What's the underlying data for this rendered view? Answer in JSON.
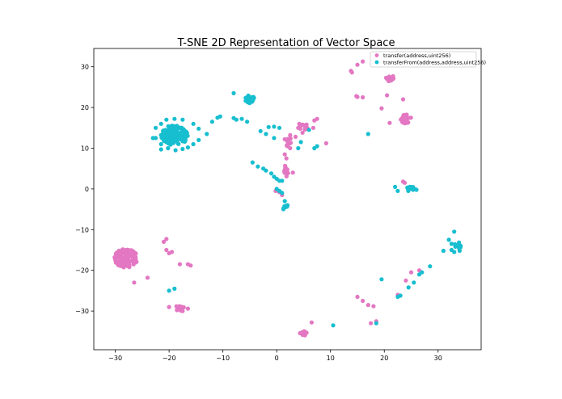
{
  "chart_data": {
    "type": "scatter",
    "title": "T-SNE 2D Representation of Vector Space",
    "xlabel": "",
    "ylabel": "",
    "xlim": [
      -34,
      38
    ],
    "ylim": [
      -39.5,
      34.5
    ],
    "xticks": [
      -30,
      -20,
      -10,
      0,
      10,
      20,
      30
    ],
    "yticks": [
      -30,
      -20,
      -10,
      0,
      10,
      20,
      30
    ],
    "xtick_labels": [
      "−30",
      "−20",
      "−10",
      "0",
      "10",
      "20",
      "30"
    ],
    "ytick_labels": [
      "−30",
      "−20",
      "−10",
      "0",
      "10",
      "20",
      "30"
    ],
    "grid": false,
    "legend_position": "top-right",
    "series": [
      {
        "name": "transfer(address,uint256)",
        "color": "#e377c2",
        "clusters": [
          {
            "cx": -28,
            "cy": -17,
            "rx": 2.2,
            "ry": 2.3,
            "n": 120
          },
          {
            "cx": 24,
            "cy": 17.2,
            "rx": 1.0,
            "ry": 1.1,
            "n": 30
          },
          {
            "cx": 21,
            "cy": 27.2,
            "rx": 0.8,
            "ry": 0.8,
            "n": 18
          },
          {
            "cx": -18,
            "cy": -29.2,
            "rx": 0.8,
            "ry": 0.8,
            "n": 18
          },
          {
            "cx": 5,
            "cy": -35.5,
            "rx": 0.7,
            "ry": 0.6,
            "n": 12
          },
          {
            "cx": 1.8,
            "cy": 4.5,
            "rx": 0.4,
            "ry": 1.5,
            "n": 14
          },
          {
            "cx": 5,
            "cy": 15.2,
            "rx": 0.9,
            "ry": 0.9,
            "n": 12
          },
          {
            "cx": 2,
            "cy": 11.5,
            "rx": 1.0,
            "ry": 1.2,
            "n": 10
          }
        ],
        "points": [
          [
            13.8,
            29
          ],
          [
            14,
            28.6
          ],
          [
            15,
            30.5
          ],
          [
            16,
            31.3
          ],
          [
            14.8,
            22.8
          ],
          [
            15,
            22.6
          ],
          [
            16,
            22.5
          ],
          [
            19.5,
            19.8
          ],
          [
            21,
            16.2
          ],
          [
            23.5,
            22
          ],
          [
            20.5,
            23
          ],
          [
            7.5,
            17.2
          ],
          [
            7,
            16.8
          ],
          [
            6.8,
            15
          ],
          [
            9.2,
            11.2
          ],
          [
            4.2,
            16
          ],
          [
            4,
            15
          ],
          [
            4.8,
            13.8
          ],
          [
            3.5,
            12.8
          ],
          [
            2.5,
            13.2
          ],
          [
            1.5,
            12.2
          ],
          [
            1.5,
            8.5
          ],
          [
            2.5,
            10
          ],
          [
            -0.2,
            -0.5
          ],
          [
            0.5,
            -0.8
          ],
          [
            1,
            -1.5
          ],
          [
            2,
            -4
          ],
          [
            1.5,
            -4.5
          ],
          [
            3,
            4
          ],
          [
            1.8,
            7.5
          ],
          [
            -21,
            -13
          ],
          [
            -20.5,
            -12.3
          ],
          [
            -20.5,
            -15
          ],
          [
            -20,
            -15.8
          ],
          [
            -19.5,
            -15.5
          ],
          [
            -18,
            -18.5
          ],
          [
            -16.5,
            -18.5
          ],
          [
            -16,
            -18.8
          ],
          [
            -24,
            -21.8
          ],
          [
            -26.5,
            -23
          ],
          [
            -20,
            -29
          ],
          [
            -16.5,
            -29.4
          ],
          [
            -17.5,
            -30
          ],
          [
            15,
            -26.5
          ],
          [
            16,
            -27.5
          ],
          [
            17,
            -28.5
          ],
          [
            18,
            -28.8
          ],
          [
            18.5,
            -32.5
          ],
          [
            17.5,
            -33
          ],
          [
            6.5,
            -32.8
          ],
          [
            23.5,
            1.8
          ],
          [
            23.8,
            1.5
          ],
          [
            25,
            -20.5
          ],
          [
            24,
            -22.5
          ],
          [
            26.5,
            -20
          ],
          [
            22.5,
            -26
          ]
        ]
      },
      {
        "name": "transferFrom(address,address,uint256)",
        "color": "#17becf",
        "clusters": [
          {
            "cx": -19,
            "cy": 13.2,
            "rx": 2.5,
            "ry": 2.5,
            "n": 150
          },
          {
            "cx": -5,
            "cy": 22,
            "rx": 1.0,
            "ry": 1.0,
            "n": 25
          },
          {
            "cx": 25,
            "cy": 0,
            "rx": 1.2,
            "ry": 0.6,
            "n": 12
          },
          {
            "cx": 33.8,
            "cy": -13.8,
            "rx": 0.8,
            "ry": 0.8,
            "n": 10
          },
          {
            "cx": 1.5,
            "cy": -4.5,
            "rx": 0.5,
            "ry": 0.6,
            "n": 8
          }
        ],
        "points": [
          [
            -22.5,
            15
          ],
          [
            -21.5,
            16
          ],
          [
            -20.5,
            17
          ],
          [
            -19,
            17.2
          ],
          [
            -17.5,
            17
          ],
          [
            -15.5,
            16
          ],
          [
            -14.5,
            14.8
          ],
          [
            -14.5,
            12
          ],
          [
            -15.5,
            11
          ],
          [
            -16.5,
            10.2
          ],
          [
            -17.5,
            9.8
          ],
          [
            -18.8,
            9.5
          ],
          [
            -20.2,
            10
          ],
          [
            -21.5,
            11
          ],
          [
            -22.5,
            12.5
          ],
          [
            -23,
            12.5
          ],
          [
            -21.5,
            9.7
          ],
          [
            -13,
            13.5
          ],
          [
            -12,
            16.5
          ],
          [
            -11,
            17.5
          ],
          [
            -10.5,
            17.8
          ],
          [
            -8,
            23.5
          ],
          [
            -8,
            17.4
          ],
          [
            -7.5,
            17
          ],
          [
            -6.5,
            17.2
          ],
          [
            -5.5,
            16.5
          ],
          [
            -3,
            14.2
          ],
          [
            -1.5,
            15.2
          ],
          [
            -0.5,
            15.3
          ],
          [
            -0.5,
            12.5
          ],
          [
            -2,
            13.5
          ],
          [
            0.5,
            15
          ],
          [
            6,
            14.5
          ],
          [
            4.5,
            11.5
          ],
          [
            7.5,
            10.5
          ],
          [
            7,
            10
          ],
          [
            4,
            10
          ],
          [
            -4.5,
            6.5
          ],
          [
            -3.5,
            5.5
          ],
          [
            -2.5,
            5
          ],
          [
            -2,
            4.5
          ],
          [
            -1,
            3.8
          ],
          [
            -0.5,
            3
          ],
          [
            0,
            2.5
          ],
          [
            0.5,
            2
          ],
          [
            1,
            2
          ],
          [
            0,
            0
          ],
          [
            0.5,
            -0.5
          ],
          [
            1,
            -1
          ],
          [
            1.5,
            -3
          ],
          [
            2,
            -4
          ],
          [
            17,
            13.5
          ],
          [
            22,
            0.5
          ],
          [
            22.5,
            -0.5
          ],
          [
            32,
            -12.5
          ],
          [
            32.5,
            -13.5
          ],
          [
            33,
            -10.5
          ],
          [
            32.5,
            -15
          ],
          [
            33,
            -15.5
          ],
          [
            34,
            -15.2
          ],
          [
            31,
            -15.2
          ],
          [
            28.5,
            -19
          ],
          [
            27,
            -20.5
          ],
          [
            26.5,
            -21
          ],
          [
            25.5,
            -23
          ],
          [
            24.5,
            -24.2
          ],
          [
            23,
            -26.2
          ],
          [
            22.5,
            -26.5
          ],
          [
            19.5,
            -22.2
          ],
          [
            -20,
            -25
          ],
          [
            -19,
            -24.5
          ],
          [
            18.5,
            -33
          ],
          [
            10.5,
            -33.5
          ]
        ]
      }
    ]
  }
}
